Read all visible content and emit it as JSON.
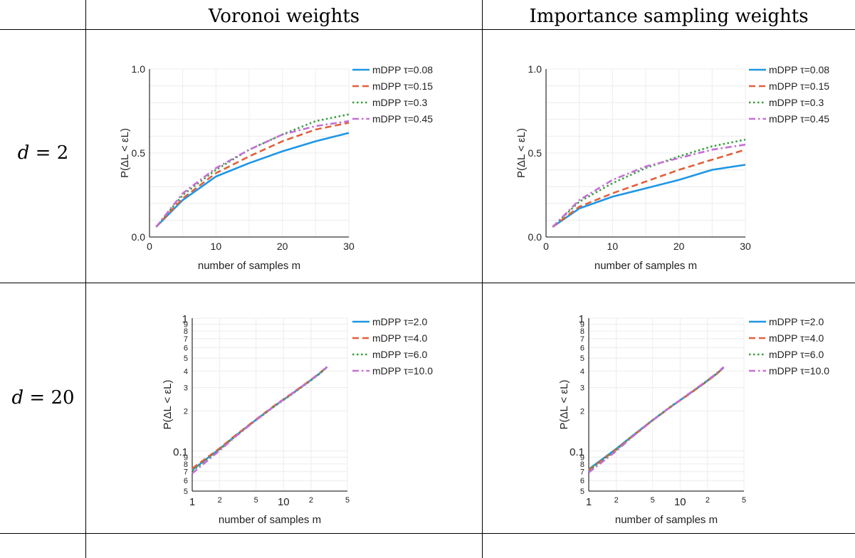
{
  "headers": {
    "col1": "Voronoi weights",
    "col2": "Importance sampling weights",
    "row1_var": "d",
    "row1_eq": " = 2",
    "row2_var": "d",
    "row2_eq": " = 20"
  },
  "colors": {
    "blue": "#1e96e6",
    "orange": "#e0613b",
    "green": "#3a9e3f",
    "purple": "#c56fd6",
    "grid": "#ececec"
  },
  "chart_data": [
    {
      "type": "line",
      "xlabel": "number of samples m",
      "ylabel": "P(ΔL < εL)",
      "xscale": "linear",
      "yscale": "linear",
      "xlim": [
        0,
        30
      ],
      "ylim": [
        0,
        1
      ],
      "xticks": [
        "0",
        "10",
        "20",
        "30"
      ],
      "yticks": [
        "0.0",
        "0.5",
        "1.0"
      ],
      "legend": "top-right",
      "grid": true,
      "x": [
        1,
        5,
        10,
        15,
        20,
        25,
        30
      ],
      "series": [
        {
          "name": "mDPP τ=0.08",
          "style": "solid",
          "color": "#1e96e6",
          "values": [
            0.06,
            0.22,
            0.36,
            0.44,
            0.51,
            0.57,
            0.62
          ]
        },
        {
          "name": "mDPP τ=0.15",
          "style": "dash",
          "color": "#e0613b",
          "values": [
            0.06,
            0.23,
            0.38,
            0.48,
            0.57,
            0.64,
            0.68
          ]
        },
        {
          "name": "mDPP τ=0.3",
          "style": "dot",
          "color": "#3a9e3f",
          "values": [
            0.06,
            0.25,
            0.4,
            0.52,
            0.61,
            0.69,
            0.73
          ]
        },
        {
          "name": "mDPP τ=0.45",
          "style": "dashdot",
          "color": "#c56fd6",
          "values": [
            0.06,
            0.26,
            0.41,
            0.52,
            0.61,
            0.66,
            0.69
          ]
        }
      ]
    },
    {
      "type": "line",
      "xlabel": "number of samples m",
      "ylabel": "P(ΔL < εL)",
      "xscale": "linear",
      "yscale": "linear",
      "xlim": [
        0,
        30
      ],
      "ylim": [
        0,
        1
      ],
      "xticks": [
        "0",
        "10",
        "20",
        "30"
      ],
      "yticks": [
        "0.0",
        "0.5",
        "1.0"
      ],
      "legend": "top-right",
      "grid": true,
      "x": [
        1,
        5,
        10,
        15,
        20,
        25,
        30
      ],
      "series": [
        {
          "name": "mDPP τ=0.08",
          "style": "solid",
          "color": "#1e96e6",
          "values": [
            0.06,
            0.17,
            0.24,
            0.29,
            0.34,
            0.4,
            0.43
          ]
        },
        {
          "name": "mDPP τ=0.15",
          "style": "dash",
          "color": "#e0613b",
          "values": [
            0.06,
            0.18,
            0.26,
            0.33,
            0.4,
            0.46,
            0.52
          ]
        },
        {
          "name": "mDPP τ=0.3",
          "style": "dot",
          "color": "#3a9e3f",
          "values": [
            0.06,
            0.21,
            0.32,
            0.41,
            0.48,
            0.54,
            0.58
          ]
        },
        {
          "name": "mDPP τ=0.45",
          "style": "dashdot",
          "color": "#c56fd6",
          "values": [
            0.06,
            0.22,
            0.34,
            0.42,
            0.47,
            0.52,
            0.55
          ]
        }
      ]
    },
    {
      "type": "line",
      "xlabel": "number of samples m",
      "ylabel": "P(ΔL < εL)",
      "xscale": "log",
      "yscale": "log",
      "xlim": [
        1,
        50
      ],
      "ylim": [
        0.05,
        1
      ],
      "xticks": [
        {
          "v": 1,
          "t": "1",
          "big": true
        },
        {
          "v": 2,
          "t": "2",
          "big": false
        },
        {
          "v": 5,
          "t": "5",
          "big": false
        },
        {
          "v": 10,
          "t": "10",
          "big": true
        },
        {
          "v": 20,
          "t": "2",
          "big": false
        },
        {
          "v": 50,
          "t": "5",
          "big": false
        }
      ],
      "yticks": [
        {
          "v": 0.05,
          "t": "5",
          "big": false
        },
        {
          "v": 0.06,
          "t": "6",
          "big": false
        },
        {
          "v": 0.07,
          "t": "7",
          "big": false
        },
        {
          "v": 0.08,
          "t": "8",
          "big": false
        },
        {
          "v": 0.09,
          "t": "9",
          "big": false
        },
        {
          "v": 0.1,
          "t": "0.1",
          "big": true
        },
        {
          "v": 0.2,
          "t": "2",
          "big": false
        },
        {
          "v": 0.3,
          "t": "3",
          "big": false
        },
        {
          "v": 0.4,
          "t": "4",
          "big": false
        },
        {
          "v": 0.5,
          "t": "5",
          "big": false
        },
        {
          "v": 0.6,
          "t": "6",
          "big": false
        },
        {
          "v": 0.7,
          "t": "7",
          "big": false
        },
        {
          "v": 0.8,
          "t": "8",
          "big": false
        },
        {
          "v": 0.9,
          "t": "9",
          "big": false
        },
        {
          "v": 1,
          "t": "1",
          "big": true
        }
      ],
      "legend": "top-right",
      "grid": true,
      "x": [
        1,
        2,
        3,
        5,
        8,
        12,
        18,
        25,
        30
      ],
      "series": [
        {
          "name": "mDPP τ=2.0",
          "style": "solid",
          "color": "#1e96e6",
          "values": [
            0.072,
            0.104,
            0.131,
            0.172,
            0.219,
            0.266,
            0.325,
            0.385,
            0.43
          ]
        },
        {
          "name": "mDPP τ=4.0",
          "style": "dash",
          "color": "#e0613b",
          "values": [
            0.074,
            0.105,
            0.132,
            0.173,
            0.221,
            0.268,
            0.327,
            0.388,
            0.432
          ]
        },
        {
          "name": "mDPP τ=6.0",
          "style": "dot",
          "color": "#3a9e3f",
          "values": [
            0.071,
            0.103,
            0.13,
            0.171,
            0.218,
            0.264,
            0.323,
            0.383,
            0.428
          ]
        },
        {
          "name": "mDPP τ=10.0",
          "style": "dashdot",
          "color": "#c56fd6",
          "values": [
            0.068,
            0.101,
            0.129,
            0.171,
            0.219,
            0.267,
            0.326,
            0.387,
            0.431
          ]
        }
      ]
    },
    {
      "type": "line",
      "xlabel": "number of samples m",
      "ylabel": "P(ΔL < εL)",
      "xscale": "log",
      "yscale": "log",
      "xlim": [
        1,
        50
      ],
      "ylim": [
        0.05,
        1
      ],
      "xticks": [
        {
          "v": 1,
          "t": "1",
          "big": true
        },
        {
          "v": 2,
          "t": "2",
          "big": false
        },
        {
          "v": 5,
          "t": "5",
          "big": false
        },
        {
          "v": 10,
          "t": "10",
          "big": true
        },
        {
          "v": 20,
          "t": "2",
          "big": false
        },
        {
          "v": 50,
          "t": "5",
          "big": false
        }
      ],
      "yticks": [
        {
          "v": 0.05,
          "t": "5",
          "big": false
        },
        {
          "v": 0.06,
          "t": "6",
          "big": false
        },
        {
          "v": 0.07,
          "t": "7",
          "big": false
        },
        {
          "v": 0.08,
          "t": "8",
          "big": false
        },
        {
          "v": 0.09,
          "t": "9",
          "big": false
        },
        {
          "v": 0.1,
          "t": "0.1",
          "big": true
        },
        {
          "v": 0.2,
          "t": "2",
          "big": false
        },
        {
          "v": 0.3,
          "t": "3",
          "big": false
        },
        {
          "v": 0.4,
          "t": "4",
          "big": false
        },
        {
          "v": 0.5,
          "t": "5",
          "big": false
        },
        {
          "v": 0.6,
          "t": "6",
          "big": false
        },
        {
          "v": 0.7,
          "t": "7",
          "big": false
        },
        {
          "v": 0.8,
          "t": "8",
          "big": false
        },
        {
          "v": 0.9,
          "t": "9",
          "big": false
        },
        {
          "v": 1,
          "t": "1",
          "big": true
        }
      ],
      "legend": "top-right",
      "grid": true,
      "x": [
        1,
        2,
        3,
        5,
        8,
        12,
        18,
        25,
        30
      ],
      "series": [
        {
          "name": "mDPP τ=2.0",
          "style": "solid",
          "color": "#1e96e6",
          "values": [
            0.073,
            0.104,
            0.13,
            0.171,
            0.217,
            0.263,
            0.321,
            0.38,
            0.425
          ]
        },
        {
          "name": "mDPP τ=4.0",
          "style": "dash",
          "color": "#e0613b",
          "values": [
            0.072,
            0.103,
            0.129,
            0.17,
            0.216,
            0.262,
            0.32,
            0.379,
            0.424
          ]
        },
        {
          "name": "mDPP τ=6.0",
          "style": "dot",
          "color": "#3a9e3f",
          "values": [
            0.071,
            0.102,
            0.13,
            0.171,
            0.218,
            0.264,
            0.322,
            0.382,
            0.427
          ]
        },
        {
          "name": "mDPP τ=10.0",
          "style": "dashdot",
          "color": "#c56fd6",
          "values": [
            0.069,
            0.1,
            0.128,
            0.17,
            0.217,
            0.265,
            0.324,
            0.384,
            0.429
          ]
        }
      ]
    }
  ]
}
